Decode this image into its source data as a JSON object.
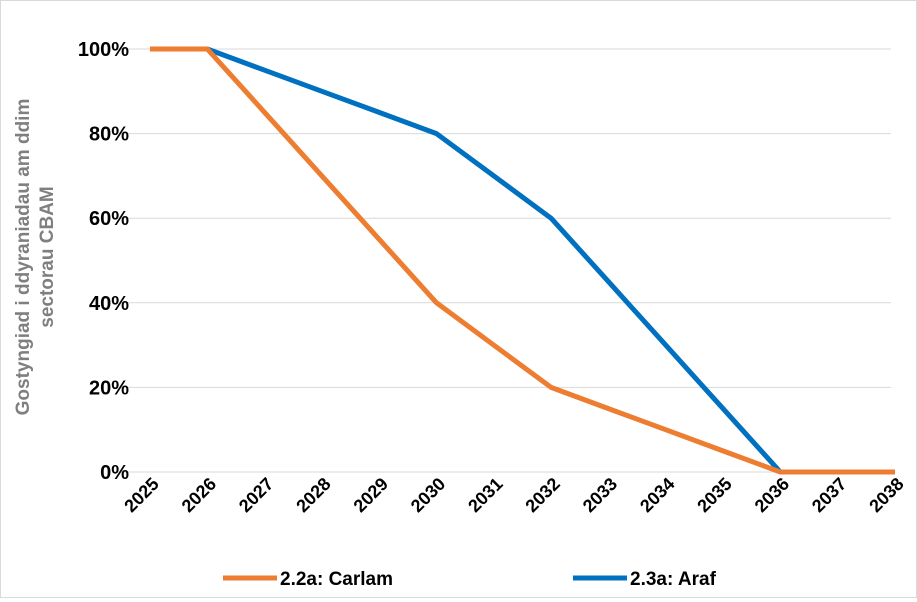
{
  "chart_data": {
    "type": "line",
    "title": "",
    "xlabel": "",
    "ylabel_lines": [
      "Gostyngiad i ddyraniadau am ddim",
      "sectorau CBAM"
    ],
    "x": [
      "2025",
      "2026",
      "2027",
      "2028",
      "2029",
      "2030",
      "2031",
      "2032",
      "2033",
      "2034",
      "2035",
      "2036",
      "2037",
      "2038"
    ],
    "yticks": [
      "0%",
      "20%",
      "40%",
      "60%",
      "80%",
      "100%"
    ],
    "ylim": [
      0,
      100
    ],
    "grid": true,
    "legend_position": "bottom",
    "series": [
      {
        "name": "2.2a: Carlam",
        "color": "#ed7d31",
        "values": [
          100,
          100,
          85,
          70,
          55,
          40,
          30,
          20,
          15,
          10,
          5,
          0,
          0,
          0
        ]
      },
      {
        "name": "2.3a: Araf",
        "color": "#0070c0",
        "values": [
          100,
          100,
          95,
          90,
          85,
          80,
          70,
          60,
          45,
          30,
          15,
          0,
          0,
          0
        ]
      }
    ]
  }
}
